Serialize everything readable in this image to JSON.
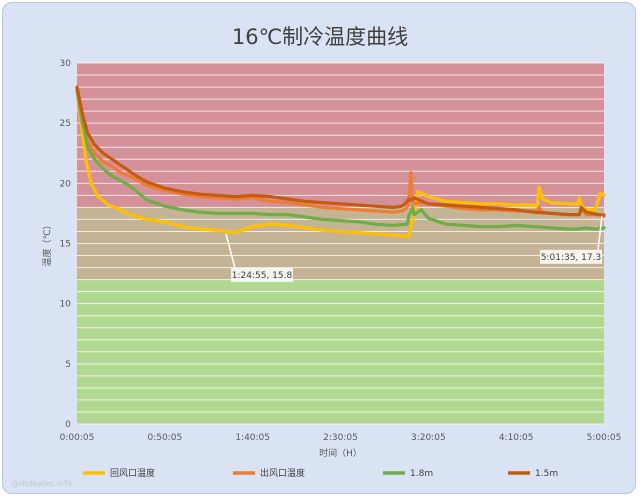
{
  "watermark": "@rhdbytes.info",
  "chart_data": {
    "type": "line",
    "title": "16℃制冷温度曲线",
    "xlabel": "时间（H）",
    "ylabel": "温度（℃）",
    "ylim": [
      0,
      30
    ],
    "xlim_minutes": [
      0,
      300
    ],
    "y_ticks": [
      0,
      5,
      10,
      15,
      20,
      25,
      30
    ],
    "x_ticks": [
      {
        "label": "0:00:05",
        "minute": 0
      },
      {
        "label": "0:50:05",
        "minute": 50
      },
      {
        "label": "1:40:05",
        "minute": 100
      },
      {
        "label": "2:30:05",
        "minute": 150
      },
      {
        "label": "3:20:05",
        "minute": 200
      },
      {
        "label": "4:10:05",
        "minute": 250
      },
      {
        "label": "5:00:05",
        "minute": 300
      }
    ],
    "bands": [
      {
        "from": 18,
        "to": 30,
        "color": "#d4919a"
      },
      {
        "from": 12,
        "to": 18,
        "color": "#c4b495"
      },
      {
        "from": 0,
        "to": 12,
        "color": "#b1d890"
      }
    ],
    "series": [
      {
        "name": "回风口温度",
        "color": "#ffc000",
        "x": [
          0,
          2,
          5,
          8,
          12,
          18,
          25,
          30,
          40,
          50,
          60,
          70,
          80,
          90,
          100,
          110,
          120,
          130,
          140,
          150,
          160,
          170,
          180,
          189,
          190,
          191,
          192,
          194,
          196,
          200,
          210,
          220,
          230,
          240,
          250,
          260,
          262,
          263,
          265,
          270,
          280,
          285,
          286,
          287,
          290,
          295,
          298,
          300
        ],
        "y": [
          27.8,
          25.5,
          22,
          20,
          18.9,
          18.2,
          17.8,
          17.4,
          17,
          16.8,
          16.4,
          16.2,
          16.1,
          15.9,
          16.4,
          16.6,
          16.5,
          16.3,
          16.1,
          16,
          15.9,
          15.8,
          15.7,
          15.6,
          16.3,
          16.9,
          17.4,
          19.3,
          19.2,
          18.9,
          18.5,
          18.4,
          18.3,
          18.3,
          18.2,
          18.2,
          18.1,
          19.7,
          18.7,
          18.4,
          18.3,
          18.3,
          18.8,
          18.2,
          17.8,
          17.8,
          19.2,
          19
        ]
      },
      {
        "name": "出风口温度",
        "color": "#ed7d31",
        "x": [
          0,
          3,
          6,
          10,
          15,
          20,
          25,
          30,
          35,
          40,
          50,
          60,
          70,
          80,
          90,
          100,
          110,
          120,
          130,
          140,
          150,
          160,
          170,
          180,
          185,
          188,
          189,
          190,
          191,
          192,
          195,
          200,
          210,
          220,
          230,
          240,
          250,
          260,
          262,
          263,
          265,
          270,
          280,
          286,
          287,
          290,
          300
        ],
        "y": [
          27.8,
          25,
          23.5,
          22.5,
          21.8,
          21.4,
          20.9,
          20.6,
          20.2,
          19.8,
          19.4,
          19.1,
          18.9,
          18.8,
          18.7,
          18.8,
          18.5,
          18.4,
          18.2,
          18,
          17.9,
          17.8,
          17.7,
          17.6,
          17.7,
          18,
          18.7,
          20.9,
          18.7,
          18.3,
          18.4,
          18.3,
          18.1,
          17.9,
          17.8,
          17.8,
          17.7,
          17.7,
          17.7,
          18,
          17.6,
          17.5,
          17.4,
          17.4,
          17.8,
          17.4,
          17.4
        ]
      },
      {
        "name": "1.8m",
        "color": "#70ad47",
        "x": [
          0,
          3,
          6,
          10,
          15,
          20,
          25,
          30,
          35,
          40,
          50,
          60,
          70,
          80,
          90,
          100,
          110,
          120,
          130,
          140,
          150,
          160,
          170,
          180,
          188,
          189,
          190,
          191,
          192,
          194,
          196,
          200,
          210,
          220,
          230,
          240,
          250,
          260,
          270,
          280,
          285,
          290,
          295,
          300
        ],
        "y": [
          27.8,
          25.2,
          23,
          22,
          21.2,
          20.6,
          20.2,
          19.8,
          19.2,
          18.6,
          18.1,
          17.8,
          17.6,
          17.5,
          17.5,
          17.5,
          17.4,
          17.4,
          17.2,
          17,
          16.9,
          16.8,
          16.6,
          16.5,
          16.6,
          17.4,
          17.6,
          18,
          17.4,
          17.6,
          17.8,
          17.1,
          16.6,
          16.5,
          16.4,
          16.4,
          16.5,
          16.4,
          16.3,
          16.2,
          16.2,
          16.3,
          16.2,
          16.3
        ]
      },
      {
        "name": "1.5m",
        "color": "#c55a11",
        "x": [
          0,
          3,
          6,
          10,
          15,
          20,
          25,
          30,
          35,
          40,
          50,
          60,
          70,
          80,
          90,
          100,
          110,
          120,
          130,
          140,
          150,
          160,
          170,
          180,
          185,
          188,
          189,
          190,
          191,
          192,
          195,
          200,
          210,
          220,
          230,
          240,
          250,
          260,
          270,
          280,
          286,
          287,
          290,
          300
        ],
        "y": [
          28,
          25.8,
          24.2,
          23.2,
          22.5,
          22,
          21.5,
          21,
          20.5,
          20.1,
          19.6,
          19.3,
          19.1,
          19,
          18.9,
          19,
          18.9,
          18.7,
          18.5,
          18.4,
          18.3,
          18.2,
          18.1,
          18,
          18.1,
          18.5,
          18.7,
          18.6,
          18.7,
          18.8,
          18.6,
          18.3,
          18.2,
          18.1,
          18,
          17.9,
          17.8,
          17.6,
          17.5,
          17.4,
          17.4,
          18,
          17.6,
          17.3
        ]
      }
    ],
    "annotations": [
      {
        "text": "1:24:55, 15.8",
        "minute": 84.8,
        "value": 15.8
      },
      {
        "text": "5:01:35, 17.3",
        "minute": 301.5,
        "value": 17.3
      }
    ],
    "legend": "bottom"
  }
}
